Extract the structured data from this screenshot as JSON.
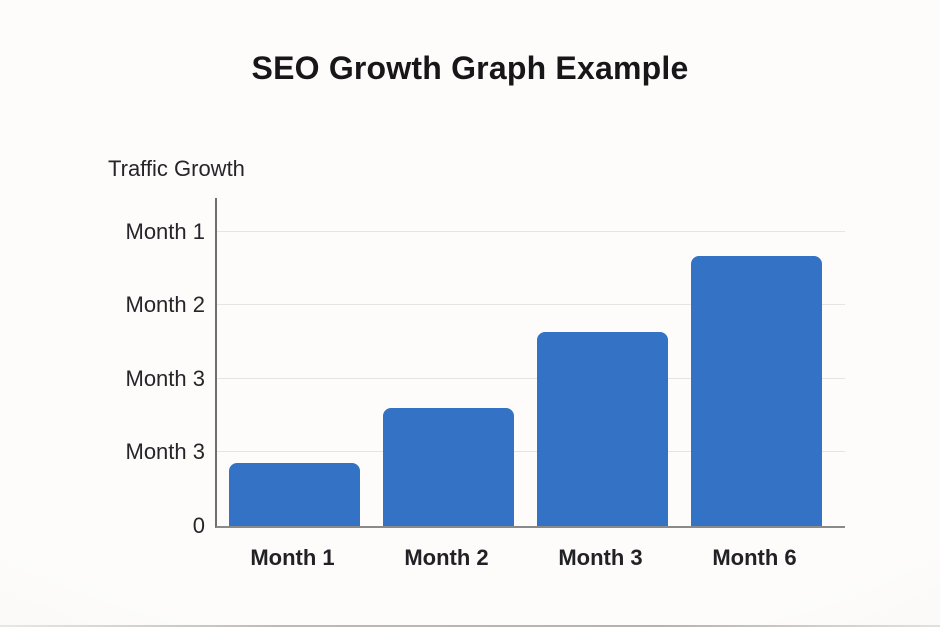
{
  "chart_data": {
    "type": "bar",
    "title": "SEO Growth Graph Example",
    "y_axis_title": "Traffic Growth",
    "categories": [
      "Month 1",
      "Month 2",
      "Month 3",
      "Month 6"
    ],
    "values": [
      0.86,
      1.61,
      2.64,
      3.67
    ],
    "value_units": "y-axis gridline divisions (chart displays no numeric scale)",
    "y_tick_labels_top_to_bottom": [
      "Month 1",
      "Month 2",
      "Month 3",
      "Month 3",
      "0"
    ],
    "ylim": [
      0,
      4.46
    ],
    "gridlines_at_divisions": [
      1,
      2,
      3,
      4
    ],
    "grid": true,
    "legend": false,
    "bar_color": "#3372c4",
    "axis_color": "#8a8a8a",
    "gridline_color": "#e4e4e2",
    "text_color": "#26262a",
    "background_color": "#fbfaf8"
  }
}
